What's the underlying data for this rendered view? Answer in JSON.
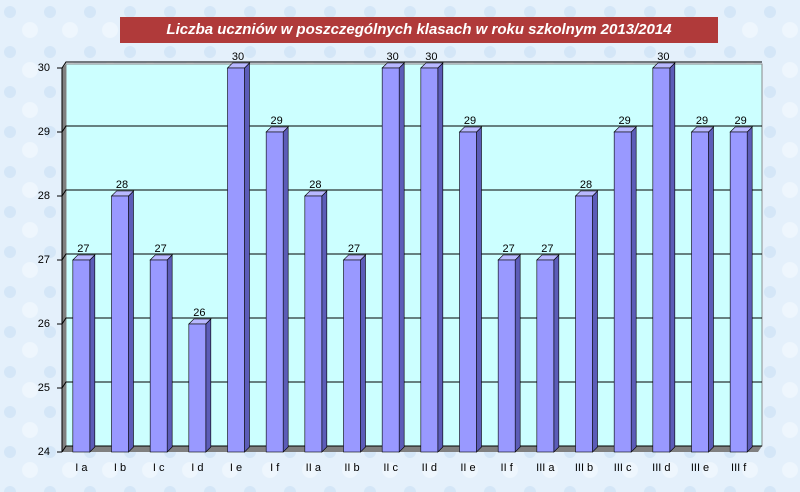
{
  "chart_data": {
    "type": "bar",
    "title": "Liczba uczniów w poszczególnych klasach  w roku szkolnym 2013/2014",
    "categories": [
      "I a",
      "I b",
      "I c",
      "I d",
      "I e",
      "I f",
      "II a",
      "II b",
      "II c",
      "II d",
      "II e",
      "II f",
      "III a",
      "III b",
      "III c",
      "III d",
      "III e",
      "III f"
    ],
    "values": [
      27,
      28,
      27,
      26,
      30,
      29,
      28,
      27,
      30,
      30,
      29,
      27,
      27,
      28,
      29,
      30,
      29,
      29
    ],
    "color": "#9999ff",
    "ylim": [
      24,
      30
    ],
    "yticks": [
      24,
      25,
      26,
      27,
      28,
      29,
      30
    ],
    "grid": true
  }
}
